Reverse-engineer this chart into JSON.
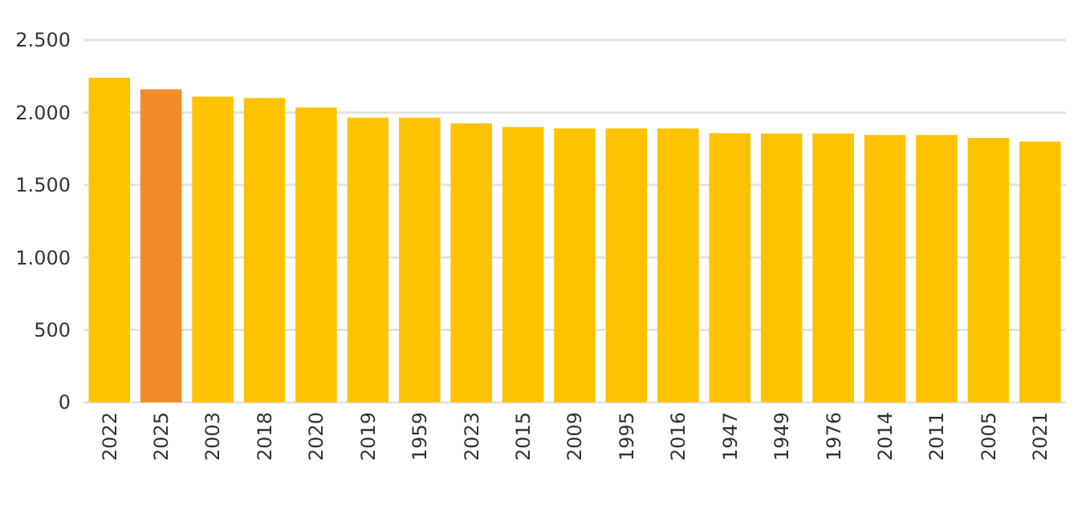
{
  "chart_data": {
    "type": "bar",
    "categories": [
      "2022",
      "2025",
      "2003",
      "2018",
      "2020",
      "2019",
      "1959",
      "2023",
      "2015",
      "2009",
      "1995",
      "2016",
      "1947",
      "1949",
      "1976",
      "2014",
      "2011",
      "2005",
      "2021"
    ],
    "values": [
      2240,
      2160,
      2110,
      2100,
      2035,
      1965,
      1965,
      1925,
      1900,
      1890,
      1890,
      1890,
      1857,
      1855,
      1855,
      1845,
      1845,
      1825,
      1800
    ],
    "colors": [
      "#fdc300",
      "#f28b2a",
      "#fdc300",
      "#fdc300",
      "#fdc300",
      "#fdc300",
      "#fdc300",
      "#fdc300",
      "#fdc300",
      "#fdc300",
      "#fdc300",
      "#fdc300",
      "#fdc300",
      "#fdc300",
      "#fdc300",
      "#fdc300",
      "#fdc300",
      "#fdc300",
      "#fdc300"
    ],
    "ylim": [
      0,
      2500
    ],
    "yticks": [
      0,
      {
        "value": 500,
        "label": "500"
      },
      {
        "value": 1000,
        "label": "1.000"
      },
      {
        "value": 1500,
        "label": "1.500"
      },
      {
        "value": 2000,
        "label": "2.000"
      },
      {
        "value": 2500,
        "label": "2.500"
      }
    ],
    "grid": "y"
  }
}
